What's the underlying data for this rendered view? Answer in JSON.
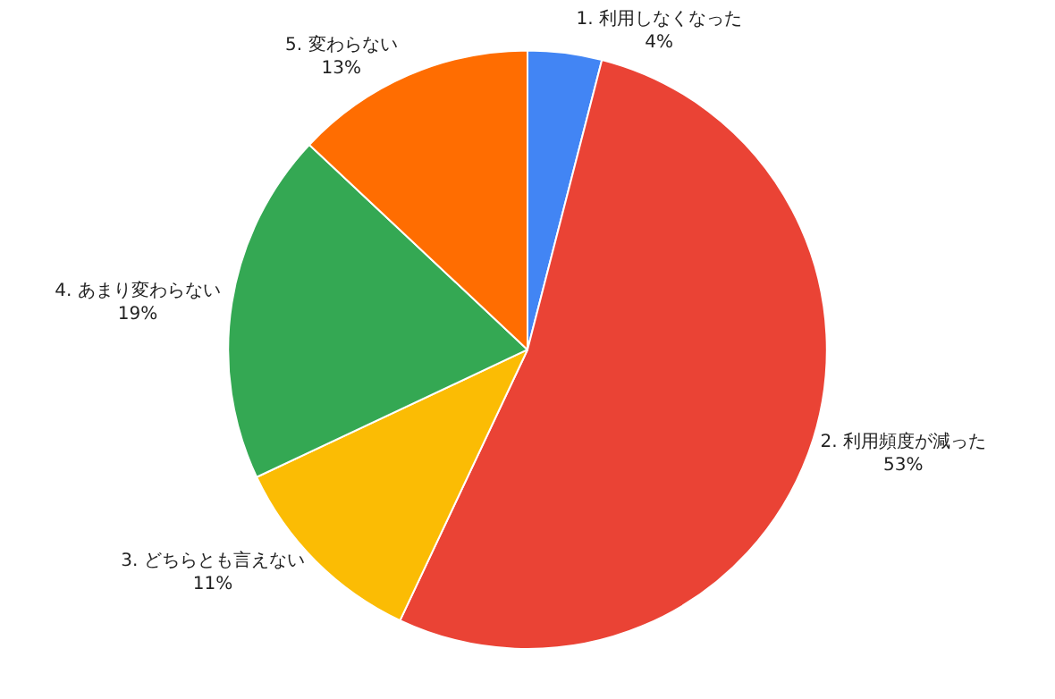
{
  "chart_data": {
    "type": "pie",
    "categories": [
      "1. 利用しなくなった",
      "2. 利用頻度が減った",
      "3. どちらとも言えない",
      "4. あまり変わらない",
      "5. 変わらない"
    ],
    "values": [
      4,
      53,
      11,
      19,
      13
    ],
    "value_labels": [
      "4%",
      "53%",
      "11%",
      "19%",
      "13%"
    ],
    "colors": [
      "#4285f4",
      "#ea4335",
      "#fbbc04",
      "#34a853",
      "#ff6d01"
    ],
    "legend": false
  }
}
